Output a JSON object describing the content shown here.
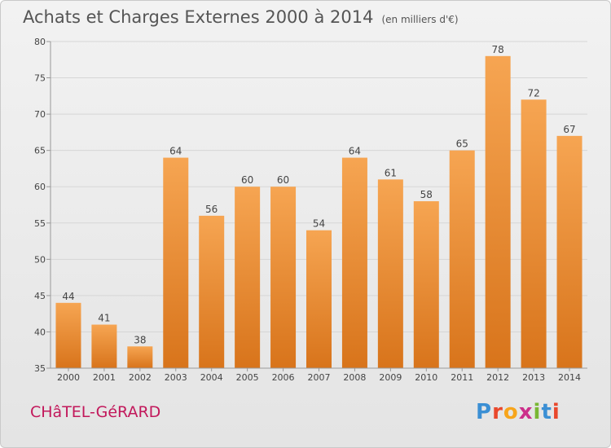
{
  "header": {
    "title": "Achats et Charges Externes 2000 à 2014",
    "subtitle": "(en milliers d'€)"
  },
  "footer": {
    "commune": "CHâTEL-GéRARD",
    "logo_letters": [
      "P",
      "r",
      "o",
      "x",
      "i",
      "t",
      "i"
    ],
    "logo_colors": [
      "#3b8fd4",
      "#e9482c",
      "#f7a51c",
      "#cc2f8b",
      "#79b734",
      "#3b8fd4",
      "#e9482c"
    ]
  },
  "colors": {
    "bar_top": "#f6a552",
    "bar_bottom": "#d8741b",
    "grid": "#d6d6d6",
    "axis": "#999999"
  },
  "chart_data": {
    "type": "bar",
    "categories": [
      "2000",
      "2001",
      "2002",
      "2003",
      "2004",
      "2005",
      "2006",
      "2007",
      "2008",
      "2009",
      "2010",
      "2011",
      "2012",
      "2013",
      "2014"
    ],
    "values": [
      44,
      41,
      38,
      64,
      56,
      60,
      60,
      54,
      64,
      61,
      58,
      65,
      78,
      72,
      67
    ],
    "title": "Achats et Charges Externes 2000 à 2014",
    "ylim": [
      35,
      80
    ],
    "yticks": [
      35,
      40,
      45,
      50,
      55,
      60,
      65,
      70,
      75,
      80
    ],
    "grid": true
  }
}
